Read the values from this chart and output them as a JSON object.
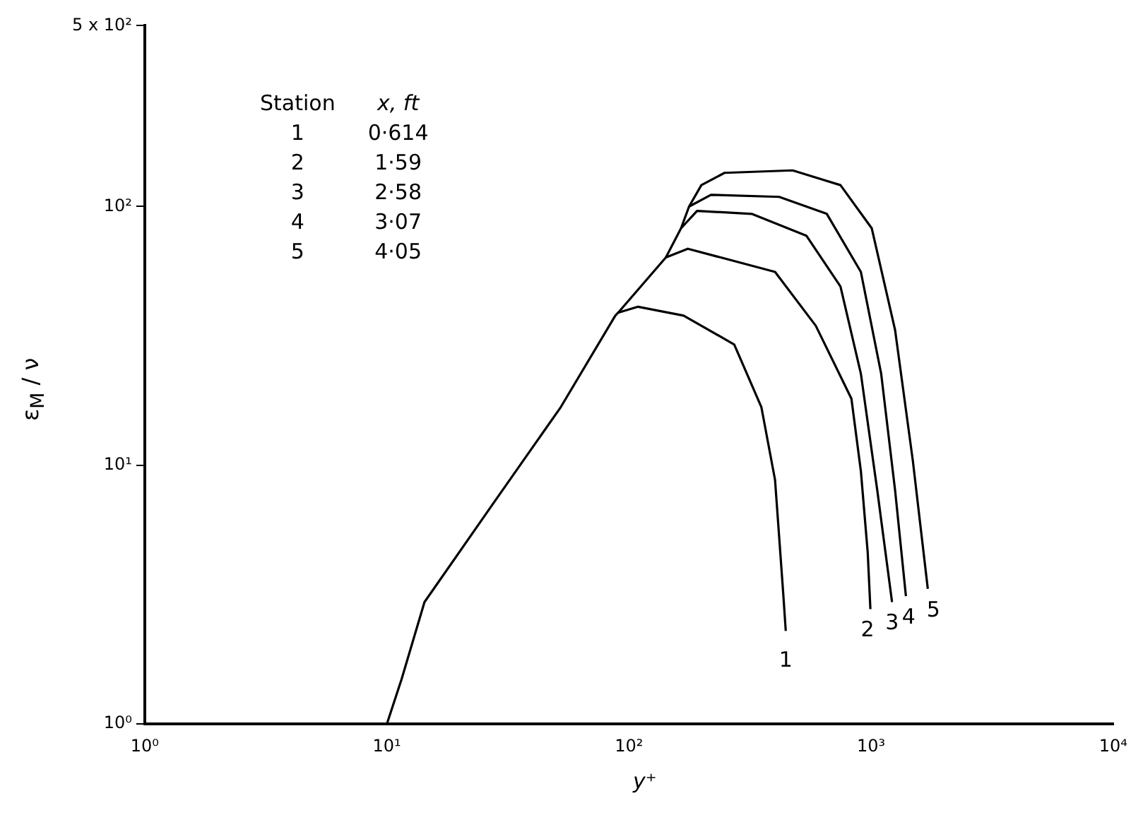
{
  "chart_data": {
    "type": "line",
    "xlabel": "y⁺",
    "ylabel": "ε$_{M}$ / ν",
    "log": "xy",
    "grid": false,
    "legend": false,
    "marker": "none",
    "line_style": "solid",
    "xlim": [
      1,
      10000
    ],
    "xticks": [
      {
        "value": 1,
        "label": "10⁰"
      },
      {
        "value": 10,
        "label": "10¹"
      },
      {
        "value": 100,
        "label": "10²"
      },
      {
        "value": 1000,
        "label": "10³"
      },
      {
        "value": 10000,
        "label": "10⁴"
      }
    ],
    "ylim": [
      1,
      500
    ],
    "yticks": [
      {
        "value": 1,
        "label": "10⁰"
      },
      {
        "value": 10,
        "label": "10¹"
      },
      {
        "value": 100,
        "label": "10²"
      },
      {
        "value": 500,
        "label": "5 x 10²"
      }
    ],
    "annotations": [
      "Station",
      "x, ft",
      "0·614",
      "1·59",
      "2·58",
      "3·07",
      "4·05"
    ],
    "series": [
      {
        "name": "1",
        "color": "#000000",
        "x": [
          10,
          11.5,
          14.3,
          27.3,
          52.3,
          87.8,
          90.2,
          109,
          168,
          272,
          352,
          401,
          433,
          444
        ],
        "values": [
          1,
          1.49,
          2.96,
          7.05,
          16.8,
          37.9,
          38.9,
          41,
          37.9,
          29.3,
          16.8,
          8.78,
          3.24,
          2.29
        ]
      },
      {
        "name": "2",
        "color": "#000000",
        "x": [
          90.2,
          142,
          175,
          401,
          591,
          829,
          907,
          968,
          993
        ],
        "values": [
          38.9,
          63.6,
          68.7,
          55.9,
          34.6,
          18.1,
          9.5,
          4.6,
          2.78
        ]
      },
      {
        "name": "3",
        "color": "#000000",
        "x": [
          142,
          164,
          191,
          321,
          540,
          747,
          907,
          1060,
          1220
        ],
        "values": [
          63.6,
          82.4,
          96.2,
          93.7,
          77.2,
          49.1,
          22.6,
          8,
          2.96
        ]
      },
      {
        "name": "4",
        "color": "#000000",
        "x": [
          164,
          177,
          218,
          417,
          656,
          907,
          1100,
          1256,
          1392
        ],
        "values": [
          82.4,
          100,
          111,
          109,
          93.7,
          55.9,
          22.6,
          8,
          3.12
        ]
      },
      {
        "name": "5",
        "color": "#000000",
        "x": [
          177,
          199,
          248,
          474,
          747,
          1006,
          1256,
          1487,
          1714
        ],
        "values": [
          100,
          121,
          135,
          138,
          121,
          82.4,
          33.3,
          10.4,
          3.33
        ]
      }
    ]
  }
}
